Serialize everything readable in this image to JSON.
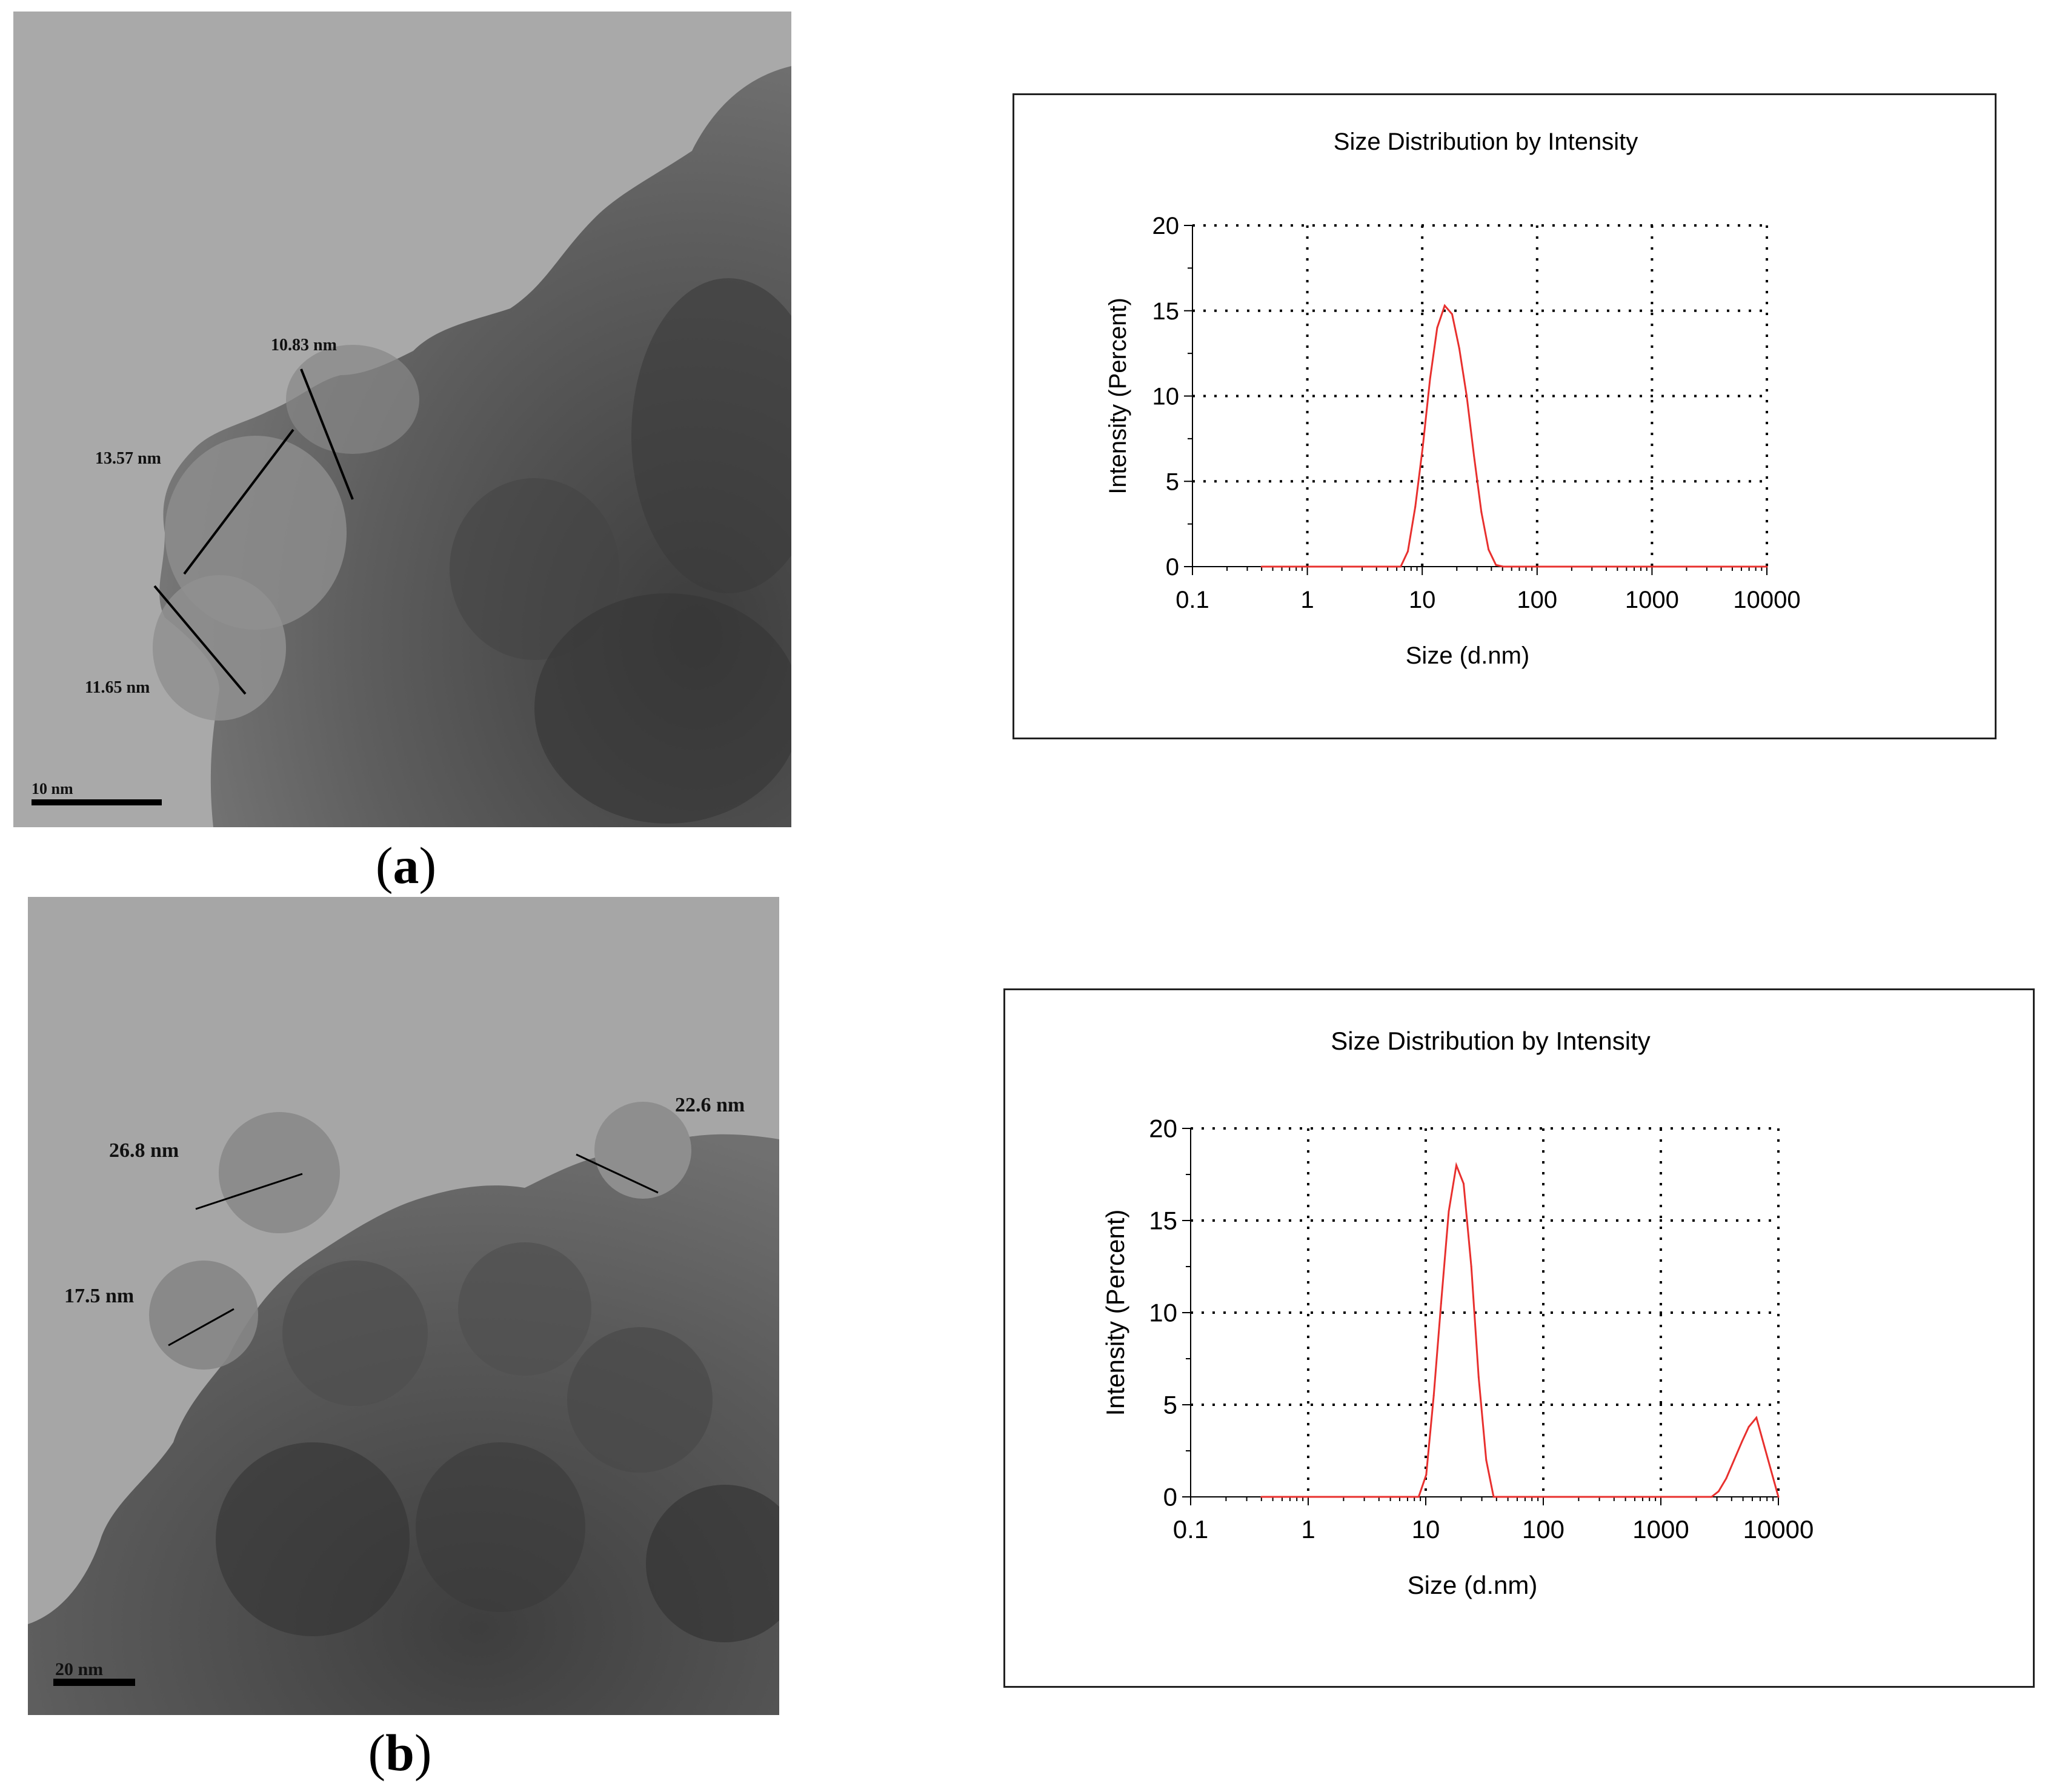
{
  "panels": [
    {
      "label_open": "(",
      "label_letter": "a",
      "label_close": ")",
      "tem": {
        "measurements": [
          "10.83 nm",
          "13.57 nm",
          "11.65 nm"
        ],
        "scale_bar": "10 nm"
      }
    },
    {
      "label_open": "(",
      "label_letter": "b",
      "label_close": ")",
      "tem": {
        "measurements": [
          "22.6 nm",
          "26.8 nm",
          "17.5 nm"
        ],
        "scale_bar": "20 nm"
      }
    }
  ],
  "colors": {
    "curve": "#e8302e",
    "grid": "#000000",
    "frame": "#222222"
  },
  "chart_data": [
    {
      "type": "line",
      "title": "Size Distribution by Intensity",
      "xlabel": "Size (d.nm)",
      "ylabel": "Intensity (Percent)",
      "x_scale": "log",
      "xlim": [
        0.1,
        10000
      ],
      "ylim": [
        0,
        20
      ],
      "x_ticks": [
        "0.1",
        "1",
        "10",
        "100",
        "1000",
        "10000"
      ],
      "y_ticks": [
        "0",
        "5",
        "10",
        "15",
        "20"
      ],
      "grid": "dotted",
      "series": [
        {
          "x": [
            0.4,
            6.5,
            7.5,
            8.7,
            10.1,
            11.7,
            13.5,
            15.7,
            18.2,
            21.0,
            24.4,
            28.2,
            32.7,
            37.8,
            43.8,
            50.7,
            10000
          ],
          "y": [
            0,
            0,
            0.9,
            3.5,
            7.0,
            11.0,
            14.0,
            15.3,
            14.8,
            12.8,
            10.0,
            6.5,
            3.2,
            1.0,
            0.1,
            0,
            0
          ]
        }
      ]
    },
    {
      "type": "line",
      "title": "Size Distribution by Intensity",
      "xlabel": "Size (d.nm)",
      "ylabel": "Intensity (Percent)",
      "x_scale": "log",
      "xlim": [
        0.1,
        10000
      ],
      "ylim": [
        0,
        20
      ],
      "x_ticks": [
        "0.1",
        "1",
        "10",
        "100",
        "1000",
        "10000"
      ],
      "y_ticks": [
        "0",
        "5",
        "10",
        "15",
        "20"
      ],
      "grid": "dotted",
      "series": [
        {
          "x": [
            0.4,
            8.7,
            10.1,
            11.7,
            13.5,
            15.7,
            18.2,
            21.0,
            24.4,
            28.2,
            32.7,
            37.8,
            2700,
            3100,
            3600,
            4200,
            4900,
            5600,
            6500,
            10000
          ],
          "y": [
            0,
            0,
            1.2,
            5.5,
            10.5,
            15.5,
            18.0,
            17.0,
            12.5,
            6.5,
            2.0,
            0,
            0,
            0.3,
            1.0,
            2.0,
            3.0,
            3.8,
            4.3,
            0
          ]
        }
      ]
    }
  ]
}
